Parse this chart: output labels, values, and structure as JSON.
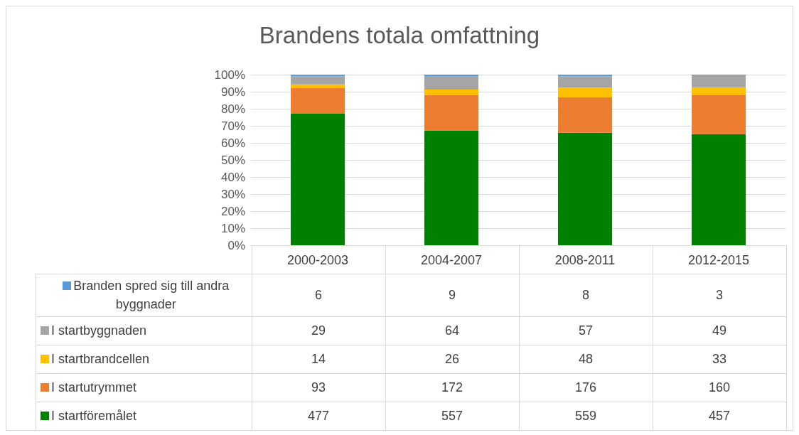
{
  "chart_data": {
    "type": "bar",
    "title": "Brandens totala omfattning",
    "stacked": true,
    "categories": [
      "2000-2003",
      "2004-2007",
      "2008-2011",
      "2012-2015"
    ],
    "series": [
      {
        "name": "I startföremålet",
        "color": "#008000",
        "values": [
          77.1,
          67.3,
          65.9,
          65.1
        ]
      },
      {
        "name": "I startutrymmet",
        "color": "#ed7d31",
        "values": [
          15.0,
          20.8,
          20.8,
          22.8
        ]
      },
      {
        "name": "I startbrandcellen",
        "color": "#ffc000",
        "values": [
          2.2,
          3.1,
          5.7,
          4.7
        ]
      },
      {
        "name": "I startbyggnaden",
        "color": "#a5a5a5",
        "values": [
          4.7,
          7.7,
          6.7,
          7.0
        ]
      },
      {
        "name": "Branden spred sig till andra byggnader",
        "color": "#5b9bd5",
        "values": [
          1.0,
          1.1,
          0.9,
          0.4
        ]
      }
    ],
    "annotations": [
      "6",
      "9",
      "8",
      "3",
      "29",
      "64",
      "57",
      "49",
      "14",
      "26",
      "48",
      "33",
      "93",
      "172",
      "176",
      "160",
      "477",
      "557",
      "559",
      "457"
    ],
    "ylim": [
      0,
      100
    ],
    "yticks": [
      {
        "value": 0,
        "label": "0%"
      },
      {
        "value": 10,
        "label": "10%"
      },
      {
        "value": 20,
        "label": "20%"
      },
      {
        "value": 30,
        "label": "30%"
      },
      {
        "value": 40,
        "label": "40%"
      },
      {
        "value": 50,
        "label": "50%"
      },
      {
        "value": 60,
        "label": "60%"
      },
      {
        "value": 70,
        "label": "70%"
      },
      {
        "value": 80,
        "label": "80%"
      },
      {
        "value": 90,
        "label": "90%"
      },
      {
        "value": 100,
        "label": "100%"
      }
    ],
    "grid": "y",
    "legend": "bottom left"
  }
}
